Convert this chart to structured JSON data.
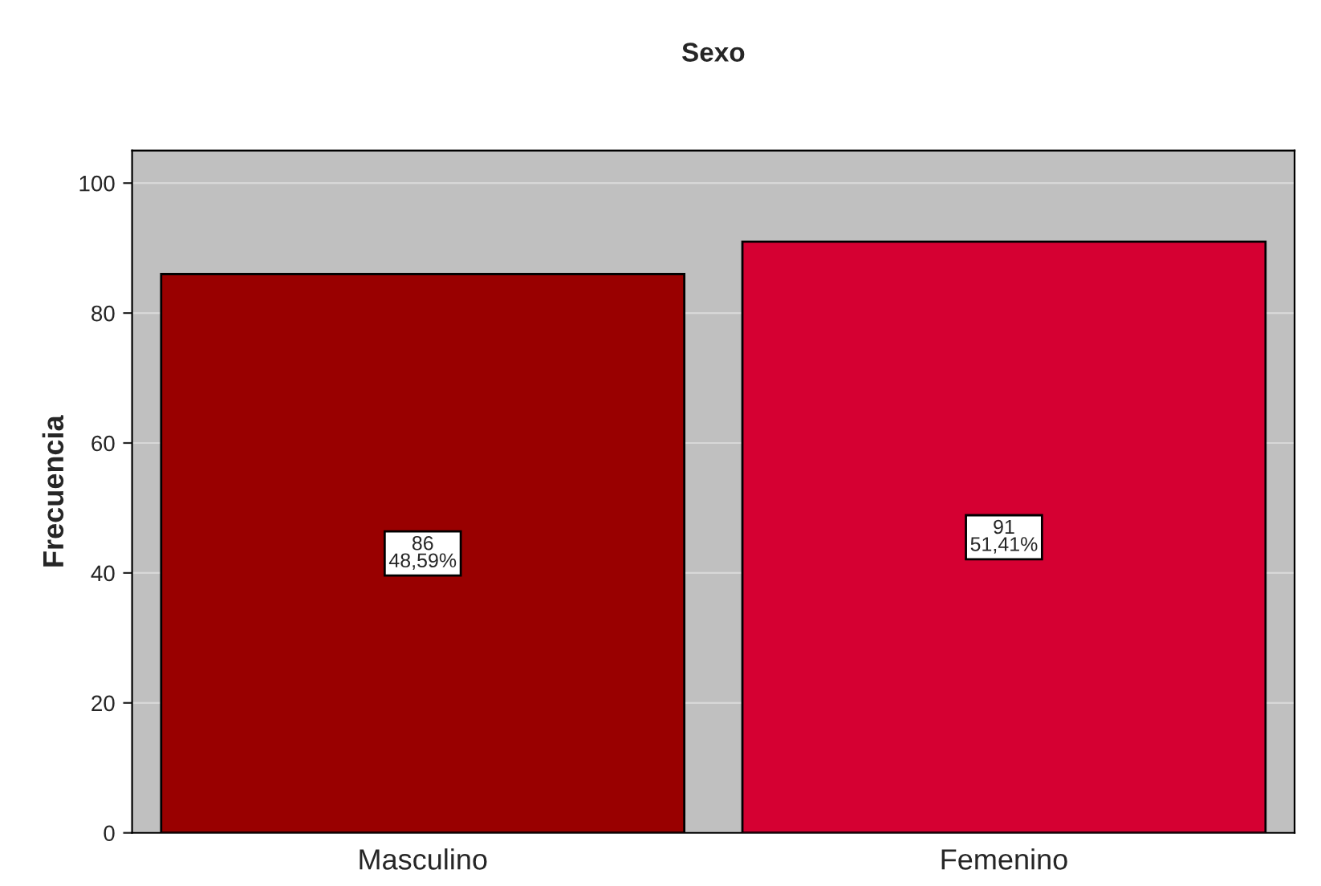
{
  "chart_data": {
    "type": "bar",
    "title": "Sexo",
    "ylabel": "Frecuencia",
    "categories": [
      "Masculino",
      "Femenino"
    ],
    "values": [
      86,
      91
    ],
    "colors": [
      "#990000",
      "#d50032"
    ],
    "value_labels": [
      "86\n48,59%",
      "91\n51,41%"
    ],
    "ylim": [
      0,
      105
    ],
    "yticks": [
      0,
      20,
      40,
      60,
      80,
      100
    ],
    "grid": "y",
    "legend": false
  }
}
